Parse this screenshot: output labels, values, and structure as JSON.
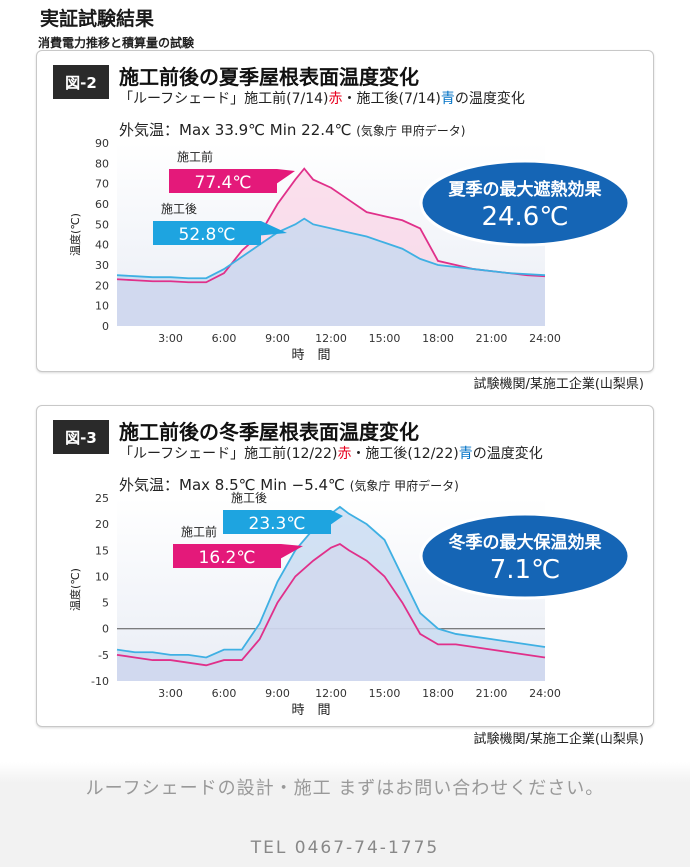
{
  "page": {
    "title": "実証試験結果",
    "subtitle": "消費電力推移と積算量の試験"
  },
  "figures": [
    {
      "tag": "図-2",
      "title": "施工前後の夏季屋根表面温度変化",
      "subtitle_pre": "「ルーフシェード」施工前(7/14)",
      "subtitle_red": "赤",
      "subtitle_mid": "・施工後(7/14)",
      "subtitle_blue": "青",
      "subtitle_post": "の温度変化",
      "weather_main": "外気温：Max 33.9℃  Min 22.4℃",
      "weather_note": "(気象庁 甲府データ)",
      "callout_before_label": "施工前",
      "callout_before_value": "77.4℃",
      "callout_after_label": "施工後",
      "callout_after_value": "52.8℃",
      "effect_label": "夏季の最大遮熱効果",
      "effect_value": "24.6℃",
      "credit": "試験機関/某施工企業(山梨県)"
    },
    {
      "tag": "図-3",
      "title": "施工前後の冬季屋根表面温度変化",
      "subtitle_pre": "「ルーフシェード」施工前(12/22)",
      "subtitle_red": "赤",
      "subtitle_mid": "・施工後(12/22)",
      "subtitle_blue": "青",
      "subtitle_post": "の温度変化",
      "weather_main": "外気温：Max 8.5℃  Min −5.4℃",
      "weather_note": "(気象庁 甲府データ)",
      "callout_before_label": "施工前",
      "callout_before_value": "16.2℃",
      "callout_after_label": "施工後",
      "callout_after_value": "23.3℃",
      "effect_label": "冬季の最大保温効果",
      "effect_value": "7.1℃",
      "credit": "試験機関/某施工企業(山梨県)"
    }
  ],
  "footer": {
    "cta": "ルーフシェードの設計・施工  まずはお問い合わせください。",
    "tel": "TEL  0467-74-1775"
  },
  "colors": {
    "before_line": "#e0308a",
    "before_fill": "#fbd3e6",
    "after_line": "#3fb0e3",
    "after_fill": "#c4d8f0",
    "callout_before": "#e4197a",
    "callout_after": "#1ea4e0",
    "effect_ellipse": "#1565b5"
  },
  "chart_data": [
    {
      "type": "area",
      "title": "施工前後の夏季屋根表面温度変化",
      "xlabel": "時　間",
      "ylabel": "温度(℃)",
      "x_ticks": [
        "3:00",
        "6:00",
        "9:00",
        "12:00",
        "15:00",
        "18:00",
        "21:00",
        "24:00"
      ],
      "y_ticks": [
        0,
        10,
        20,
        30,
        40,
        50,
        60,
        70,
        80,
        90
      ],
      "ylim": [
        0,
        90
      ],
      "xlim": [
        0,
        24
      ],
      "x": [
        0,
        1,
        2,
        3,
        4,
        5,
        6,
        7,
        8,
        9,
        10,
        10.5,
        11,
        12,
        13,
        14,
        15,
        16,
        17,
        18,
        19,
        20,
        21,
        22,
        23,
        24
      ],
      "series": [
        {
          "name": "施工前",
          "values": [
            23,
            22.5,
            22,
            22,
            21.5,
            21.5,
            26,
            37,
            45,
            60,
            72,
            77.4,
            72,
            68,
            62,
            56,
            54,
            52,
            48,
            32,
            30,
            28,
            27,
            26,
            25,
            24.5
          ]
        },
        {
          "name": "施工後",
          "values": [
            25,
            24.5,
            24,
            24,
            23.5,
            23.5,
            28,
            34,
            40,
            46,
            50,
            52.8,
            50,
            48,
            46,
            44,
            41,
            38,
            33,
            30,
            29,
            28,
            27,
            26,
            25.5,
            25
          ]
        }
      ]
    },
    {
      "type": "area",
      "title": "施工前後の冬季屋根表面温度変化",
      "xlabel": "時　間",
      "ylabel": "温度(℃)",
      "x_ticks": [
        "3:00",
        "6:00",
        "9:00",
        "12:00",
        "15:00",
        "18:00",
        "21:00",
        "24:00"
      ],
      "y_ticks": [
        -10,
        -5,
        0,
        5,
        10,
        15,
        20,
        25
      ],
      "ylim": [
        -10,
        25
      ],
      "xlim": [
        0,
        24
      ],
      "x": [
        0,
        1,
        2,
        3,
        4,
        5,
        6,
        7,
        8,
        9,
        10,
        11,
        12,
        12.5,
        13,
        14,
        15,
        16,
        17,
        18,
        19,
        20,
        21,
        22,
        23,
        24
      ],
      "series": [
        {
          "name": "施工前",
          "values": [
            -5,
            -5.5,
            -6,
            -6,
            -6.5,
            -7,
            -6,
            -6,
            -2,
            5,
            10,
            13,
            15.5,
            16.2,
            15,
            13,
            10,
            5,
            -1,
            -3,
            -3,
            -3.5,
            -4,
            -4.5,
            -5,
            -5.5
          ]
        },
        {
          "name": "施工後",
          "values": [
            -4,
            -4.5,
            -4.5,
            -5,
            -5,
            -5.5,
            -4,
            -4,
            1,
            9,
            15,
            19,
            22,
            23.3,
            22,
            20,
            17,
            10,
            3,
            0,
            -1,
            -1.5,
            -2,
            -2.5,
            -3,
            -3.5
          ]
        }
      ]
    }
  ]
}
